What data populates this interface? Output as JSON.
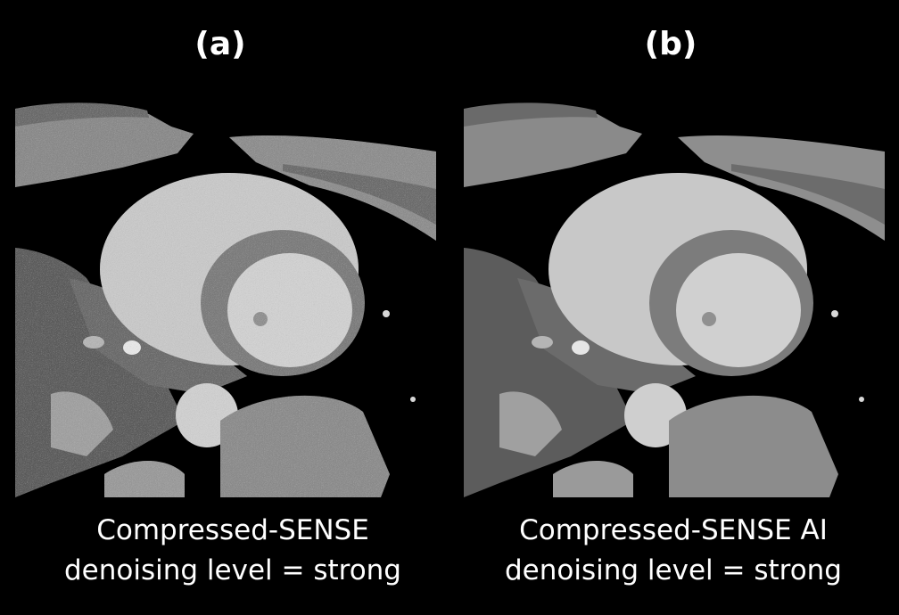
{
  "panels": [
    {
      "label": "(a)",
      "caption_line1": "Compressed-SENSE",
      "caption_line2": "denoising level = strong"
    },
    {
      "label": "(b)",
      "caption_line1": "Compressed-SENSE AI",
      "caption_line2": "denoising level = strong"
    }
  ],
  "image_description_colors": {
    "background": "#000000",
    "tissue_mid": "#8a8a8a",
    "tissue_bright": "#d2d2d2",
    "tissue_dark": "#5e5e5e"
  }
}
